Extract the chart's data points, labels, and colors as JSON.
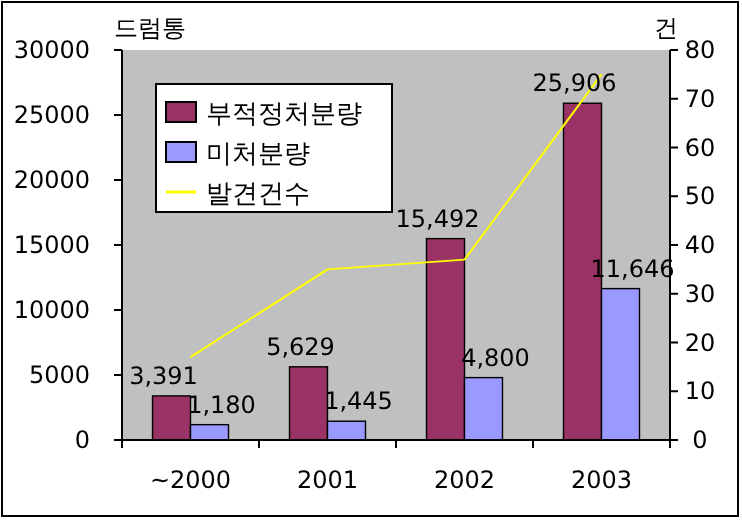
{
  "chart_data": {
    "type": "bar",
    "categories": [
      "~2000",
      "2001",
      "2002",
      "2003"
    ],
    "ylabel": "드럼통",
    "y2label": "건",
    "ylim": [
      0,
      30000
    ],
    "yticks": [
      0,
      5000,
      10000,
      15000,
      20000,
      25000,
      30000
    ],
    "y2lim": [
      0,
      80
    ],
    "y2ticks": [
      0,
      10,
      20,
      30,
      40,
      50,
      60,
      70,
      80
    ],
    "series": [
      {
        "name": "부적정처분량",
        "color": "#993366",
        "values": [
          3391,
          5629,
          15492,
          25906
        ],
        "value_labels": [
          "3,391",
          "5,629",
          "15,492",
          "25,906"
        ]
      },
      {
        "name": "미처분량",
        "color": "#9999ff",
        "values": [
          1180,
          1445,
          4800,
          11646
        ],
        "value_labels": [
          "1,180",
          "1,445",
          "4,800",
          "11,646"
        ]
      },
      {
        "name": "발견건수",
        "type": "line",
        "axis": "y2",
        "color": "#ffff00",
        "values": [
          17,
          35,
          37,
          75
        ]
      }
    ],
    "legend": "top left",
    "grid": false
  }
}
